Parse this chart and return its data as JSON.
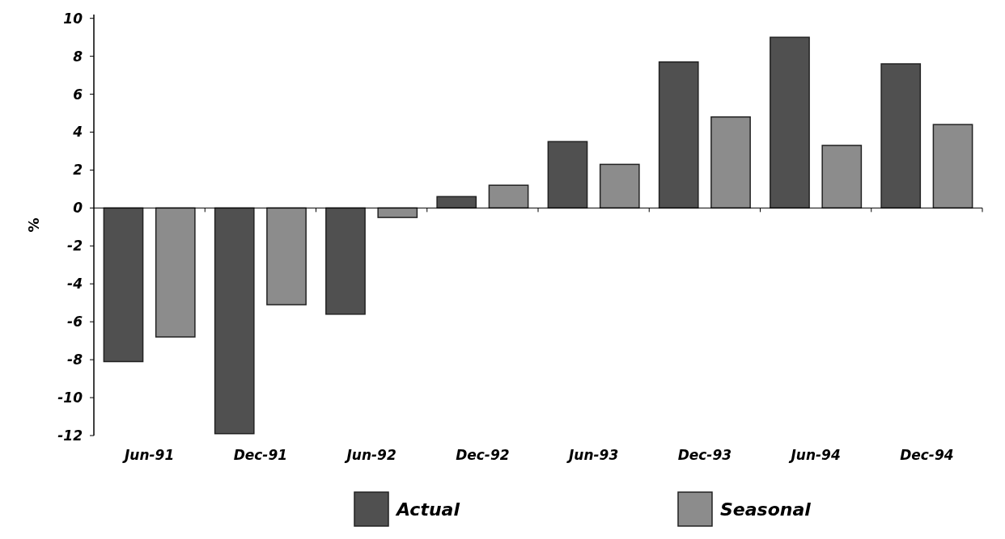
{
  "chart_data": {
    "type": "bar",
    "ylabel": "%",
    "categories": [
      "Jun-91",
      "Dec-91",
      "Jun-92",
      "Dec-92",
      "Jun-93",
      "Dec-93",
      "Jun-94",
      "Dec-94"
    ],
    "series": [
      {
        "name": "Actual",
        "color": "#505050",
        "values": [
          -8.1,
          -11.9,
          -5.6,
          0.6,
          3.5,
          7.7,
          9.0,
          7.6
        ]
      },
      {
        "name": "Seasonal",
        "color": "#8c8c8c",
        "values": [
          -6.8,
          -5.1,
          -0.5,
          1.2,
          2.3,
          4.8,
          3.3,
          4.4
        ]
      }
    ],
    "ylim": [
      -12,
      10.2
    ],
    "yticks": [
      -12,
      -10,
      -8,
      -6,
      -4,
      -2,
      0,
      2,
      4,
      6,
      8,
      10
    ],
    "legend": "bottom"
  }
}
